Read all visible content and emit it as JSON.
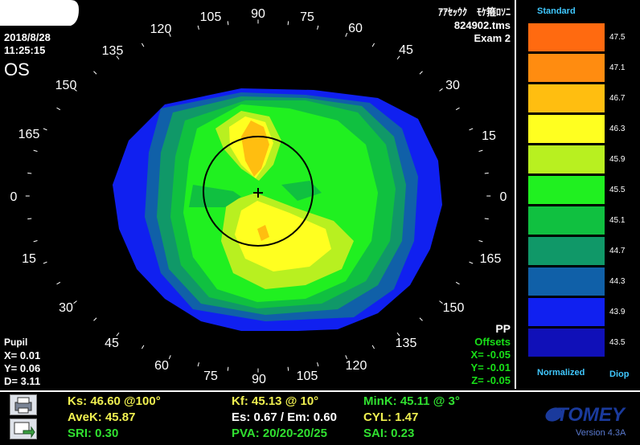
{
  "header": {
    "date": "2018/8/28",
    "time": "11:25:15",
    "eye": "OS",
    "patient_name": "ｱｱｾｯｳｸ　ﾓｹ箍ﾛｿﾆ",
    "file": "824902.tms",
    "exam": "Exam 2"
  },
  "axis_labels": {
    "top": [
      "90",
      "105",
      "120",
      "135",
      "150",
      "165",
      "0",
      "15",
      "30",
      "45",
      "60",
      "75"
    ],
    "bottom": [
      "90",
      "75",
      "60",
      "45",
      "30",
      "15",
      "0",
      "165",
      "150",
      "135",
      "120",
      "105"
    ]
  },
  "pupil": {
    "title": "Pupil",
    "x": "X=  0.01",
    "y": "Y=  0.06",
    "d": "D=  3.11"
  },
  "offsets": {
    "pp": "PP",
    "title": "Offsets",
    "x": "X= -0.05",
    "y": "Y= -0.01",
    "z": "Z= -0.05"
  },
  "legend": {
    "title": "Standard",
    "footer_left": "Normalized",
    "footer_right": "Diop",
    "scale": [
      {
        "value": "47.5",
        "color": "#ff6a10"
      },
      {
        "value": "47.1",
        "color": "#ff8c10"
      },
      {
        "value": "46.7",
        "color": "#ffbe10"
      },
      {
        "value": "46.3",
        "color": "#ffff20"
      },
      {
        "value": "45.9",
        "color": "#b8f020"
      },
      {
        "value": "45.5",
        "color": "#20f020"
      },
      {
        "value": "45.1",
        "color": "#10c040"
      },
      {
        "value": "44.7",
        "color": "#109868"
      },
      {
        "value": "44.3",
        "color": "#1060a8"
      },
      {
        "value": "43.9",
        "color": "#1020f0"
      },
      {
        "value": "43.5",
        "color": "#1010b8"
      }
    ]
  },
  "indices": {
    "ks": "Ks: 46.60 @100°",
    "kf": "Kf: 45.13 @ 10°",
    "mink": "MinK: 45.11 @  3°",
    "avek": "AveK: 45.87",
    "es_em": "Es: 0.67 / Em: 0.60",
    "cyl": "CYL:  1.47",
    "sri": "SRI: 0.30",
    "pva": "PVA: 20/20-20/25",
    "sai": "SAI: 0.23"
  },
  "brand": {
    "name": "TOMEY",
    "version": "Version 4.3A",
    "color": "#1a3a9c"
  }
}
